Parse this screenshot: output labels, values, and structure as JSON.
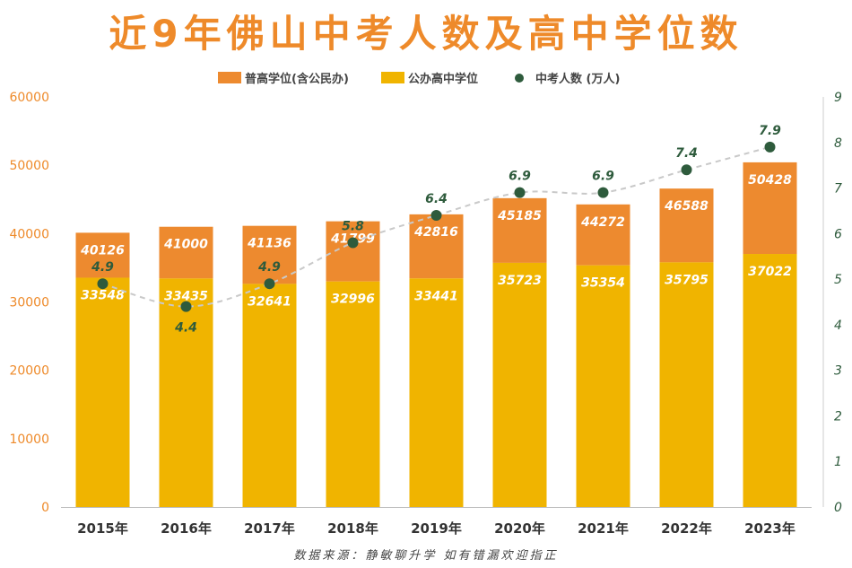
{
  "chart_data": {
    "type": "bar",
    "title": "近9年佛山中考人数及高中学位数",
    "categories": [
      "2015年",
      "2016年",
      "2017年",
      "2018年",
      "2019年",
      "2020年",
      "2021年",
      "2022年",
      "2023年"
    ],
    "series": [
      {
        "name": "公办高中学位",
        "kind": "bar",
        "stack": "base",
        "axis": "left",
        "color": "#f0b400",
        "values": [
          33548,
          33435,
          32641,
          32996,
          33441,
          35723,
          35354,
          35795,
          37022
        ]
      },
      {
        "name": "普高学位(含公民办)",
        "kind": "bar",
        "stack": "total",
        "axis": "left",
        "color": "#ed8a2f",
        "values": [
          40126,
          41000,
          41136,
          41799,
          42816,
          45185,
          44272,
          46588,
          50428
        ]
      },
      {
        "name": "中考人数（万人）",
        "kind": "line",
        "axis": "right",
        "color": "#2e5b3c",
        "values": [
          4.9,
          4.4,
          4.9,
          5.8,
          6.4,
          6.9,
          6.9,
          7.4,
          7.9
        ]
      }
    ],
    "left_axis": {
      "min": 0,
      "max": 60000,
      "ticks": [
        "0",
        "10000",
        "20000",
        "30000",
        "40000",
        "50000",
        "60000"
      ],
      "color": "#ee8a2a"
    },
    "right_axis": {
      "min": 0,
      "max": 9,
      "ticks": [
        "0",
        "1",
        "2",
        "3",
        "4",
        "5",
        "6",
        "7",
        "8",
        "9"
      ],
      "color": "#2e5b3c"
    },
    "legend_position": "top-center",
    "gridlines": false
  },
  "legend": [
    {
      "label": "普高学位(含公民办)",
      "color": "#ed8a2f",
      "marker": "bar"
    },
    {
      "label": "公办高中学位",
      "color": "#f0b400",
      "marker": "bar"
    },
    {
      "label": "中考人数 (万人)",
      "color": "#2e5b3c",
      "marker": "dot"
    }
  ],
  "source_note": "数据来源：静敏聊升学  如有错漏欢迎指正"
}
